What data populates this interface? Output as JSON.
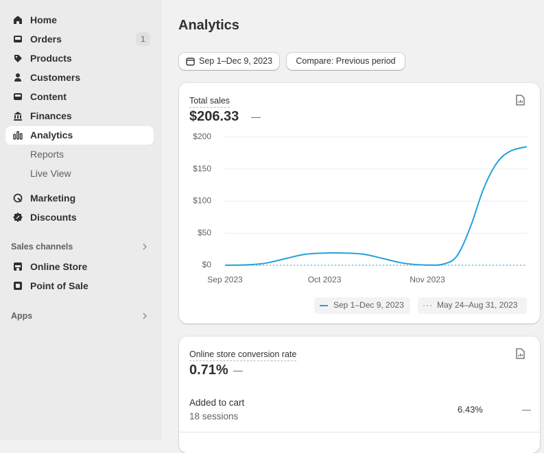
{
  "nav": {
    "main": [
      "Home",
      "Orders",
      "Products",
      "Customers",
      "Content",
      "Finances",
      "Analytics"
    ],
    "orders_badge": 1,
    "analytics_sub": [
      "Reports",
      "Live View"
    ],
    "more": [
      "Marketing",
      "Discounts"
    ],
    "sales_channels": {
      "title": "Sales channels",
      "items": [
        "Online Store",
        "Point of Sale"
      ]
    },
    "apps": "Apps"
  },
  "page": {
    "title": "Analytics",
    "date_range": "Sep 1–Dec 9, 2023",
    "compare": "Compare: Previous period"
  },
  "sales_card": {
    "title": "Total sales",
    "value": "$206.33",
    "change": "—",
    "chart": {
      "type": "line",
      "x": [
        0,
        6,
        12,
        18,
        24,
        30,
        36,
        42,
        48,
        54,
        61,
        66,
        70,
        74,
        78,
        82,
        86,
        91
      ],
      "xlim": [
        0,
        91
      ],
      "xticks": [
        {
          "value": 0,
          "label": "Sep 2023"
        },
        {
          "value": 30,
          "label": "Oct 2023"
        },
        {
          "value": 61,
          "label": "Nov 2023"
        }
      ],
      "ylim": [
        0,
        200
      ],
      "yticks": [
        {
          "value": 0,
          "label": "$0"
        },
        {
          "value": 50,
          "label": "$50"
        },
        {
          "value": 100,
          "label": "$100"
        },
        {
          "value": 150,
          "label": "$150"
        },
        {
          "value": 200,
          "label": "$200"
        }
      ],
      "grid": true,
      "series": [
        {
          "name": "Sep 1–Dec 9, 2023",
          "color": "#23a0da",
          "dashed": false,
          "values": [
            0,
            0.5,
            3,
            10,
            17,
            19,
            19,
            17,
            10,
            3,
            0.3,
            2,
            15,
            60,
            120,
            160,
            178,
            185
          ]
        },
        {
          "name": "May 24–Aug 31, 2023",
          "color": "#8ccfee",
          "dashed": true,
          "values": [
            0,
            0,
            0,
            0,
            0,
            0,
            0,
            0,
            0,
            0,
            0,
            0,
            0,
            0,
            0,
            0,
            0,
            0
          ]
        }
      ]
    }
  },
  "conversion_card": {
    "title": "Online store conversion rate",
    "value": "0.71%",
    "change": "—",
    "rows": [
      {
        "label": "Added to cart",
        "sessions": "18 sessions",
        "rate": "6.43%",
        "change": "—"
      }
    ]
  }
}
